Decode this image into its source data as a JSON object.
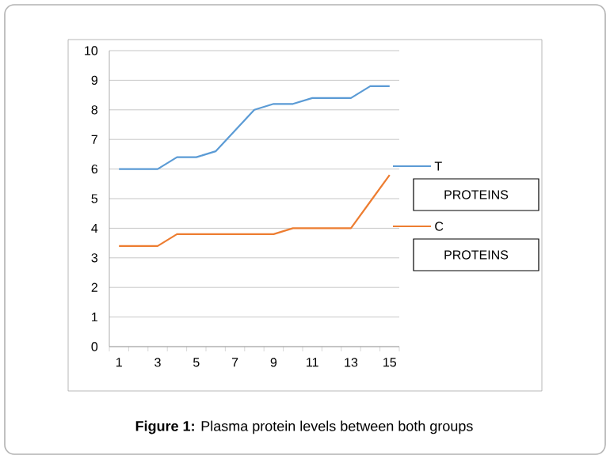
{
  "chart_data": {
    "type": "line",
    "categories": [
      "1",
      null,
      "3",
      null,
      "5",
      null,
      "7",
      null,
      "9",
      null,
      "11",
      null,
      "13",
      null,
      "15"
    ],
    "series": [
      {
        "name": "T",
        "color": "#5b9bd5",
        "values": [
          6,
          6,
          6,
          6.4,
          6.4,
          6.6,
          7.3,
          8,
          8.2,
          8.2,
          8.4,
          8.4,
          8.4,
          8.8,
          8.8
        ]
      },
      {
        "name": "C",
        "color": "#ed7d31",
        "values": [
          3.4,
          3.4,
          3.4,
          3.8,
          3.8,
          3.8,
          3.8,
          3.8,
          3.8,
          4,
          4,
          4,
          4,
          4.9,
          5.8
        ]
      }
    ],
    "ylim": [
      0,
      10
    ],
    "yticks": [
      0,
      1,
      2,
      3,
      4,
      5,
      6,
      7,
      8,
      9,
      10
    ],
    "grid": "y",
    "legend": "right",
    "marker": "none",
    "line_style": "solid",
    "annotations": [
      "PROTEINS",
      "PROTEINS",
      "**Figure 1:** Plasma protein levels between both groups"
    ]
  }
}
